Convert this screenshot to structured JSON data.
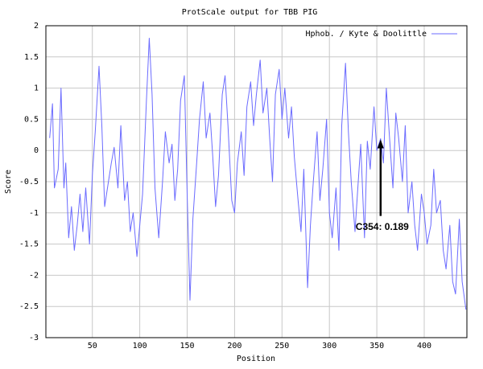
{
  "chart_data": {
    "type": "line",
    "title": "ProtScale output for TBB PIG",
    "xlabel": "Position",
    "ylabel": "Score",
    "xlim": [
      1,
      445
    ],
    "ylim": [
      -3,
      2
    ],
    "x_ticks": [
      50,
      100,
      150,
      200,
      250,
      300,
      350,
      400
    ],
    "y_ticks": [
      -3,
      -2.5,
      -2,
      -1.5,
      -1,
      -0.5,
      0,
      0.5,
      1,
      1.5,
      2
    ],
    "x_tick_labels": [
      "50",
      "100",
      "150",
      "200",
      "250",
      "300",
      "350",
      "400"
    ],
    "y_tick_labels": [
      "-3",
      "-2.5",
      "-2",
      "-1.5",
      "-1",
      "-0.5",
      "0",
      "0.5",
      "1",
      "1.5",
      "2"
    ],
    "grid": true,
    "legend_position": "top-right",
    "series": [
      {
        "name": "Hphob. / Kyte & Doolittle",
        "color": "#6b6bff",
        "x": [
          5,
          8,
          10,
          14,
          17,
          20,
          22,
          25,
          28,
          31,
          34,
          37,
          40,
          43,
          47,
          50,
          53,
          57,
          60,
          63,
          67,
          70,
          73,
          77,
          80,
          84,
          87,
          90,
          93,
          97,
          100,
          103,
          107,
          110,
          113,
          116,
          120,
          124,
          127,
          131,
          134,
          137,
          140,
          143,
          147,
          150,
          153,
          156,
          160,
          163,
          167,
          170,
          174,
          177,
          180,
          183,
          187,
          190,
          193,
          197,
          200,
          203,
          207,
          210,
          213,
          217,
          220,
          223,
          227,
          230,
          234,
          237,
          240,
          243,
          247,
          250,
          253,
          257,
          260,
          263,
          267,
          270,
          273,
          277,
          280,
          283,
          287,
          290,
          293,
          297,
          300,
          303,
          307,
          310,
          313,
          317,
          320,
          323,
          327,
          330,
          333,
          337,
          340,
          343,
          347,
          350,
          354,
          357,
          360,
          363,
          367,
          370,
          373,
          377,
          380,
          383,
          387,
          390,
          393,
          397,
          400,
          403,
          407,
          410,
          413,
          417,
          420,
          423,
          427,
          430,
          433,
          437,
          440,
          444
        ],
        "values": [
          0.2,
          0.75,
          -0.6,
          -0.3,
          1.0,
          -0.6,
          -0.2,
          -1.4,
          -0.9,
          -1.6,
          -1.2,
          -0.7,
          -1.3,
          -0.6,
          -1.5,
          -0.4,
          0.3,
          1.35,
          0.4,
          -0.9,
          -0.5,
          -0.2,
          0.05,
          -0.6,
          0.4,
          -0.8,
          -0.5,
          -1.3,
          -1.0,
          -1.7,
          -1.2,
          -0.7,
          0.8,
          1.8,
          0.9,
          -0.6,
          -1.4,
          -0.5,
          0.3,
          -0.2,
          0.1,
          -0.8,
          -0.3,
          0.8,
          1.2,
          -0.7,
          -2.4,
          -1.1,
          -0.2,
          0.5,
          1.1,
          0.2,
          0.6,
          -0.1,
          -0.9,
          -0.4,
          0.9,
          1.2,
          0.4,
          -0.8,
          -1.0,
          -0.2,
          0.3,
          -0.4,
          0.7,
          1.1,
          0.4,
          0.9,
          1.45,
          0.6,
          1.0,
          0.2,
          -0.5,
          0.9,
          1.3,
          0.5,
          1.0,
          0.2,
          0.7,
          -0.1,
          -0.8,
          -1.3,
          -0.3,
          -2.2,
          -1.2,
          -0.5,
          0.3,
          -0.8,
          -0.3,
          0.5,
          -1.0,
          -1.4,
          -0.6,
          -1.6,
          0.4,
          1.4,
          0.3,
          -0.5,
          -1.3,
          -0.6,
          0.1,
          -1.4,
          0.15,
          -0.3,
          0.7,
          0.0,
          0.19,
          -0.2,
          1.0,
          0.3,
          -0.6,
          0.6,
          0.2,
          -0.5,
          0.4,
          -1.0,
          -0.5,
          -1.2,
          -1.6,
          -0.7,
          -1.0,
          -1.5,
          -1.2,
          -0.3,
          -1.0,
          -0.8,
          -1.6,
          -1.9,
          -1.2,
          -2.1,
          -2.3,
          -1.1,
          -2.1,
          -2.55
        ]
      }
    ],
    "annotation": {
      "text": "C354: 0.189",
      "x": 354,
      "y": 0.189
    }
  }
}
